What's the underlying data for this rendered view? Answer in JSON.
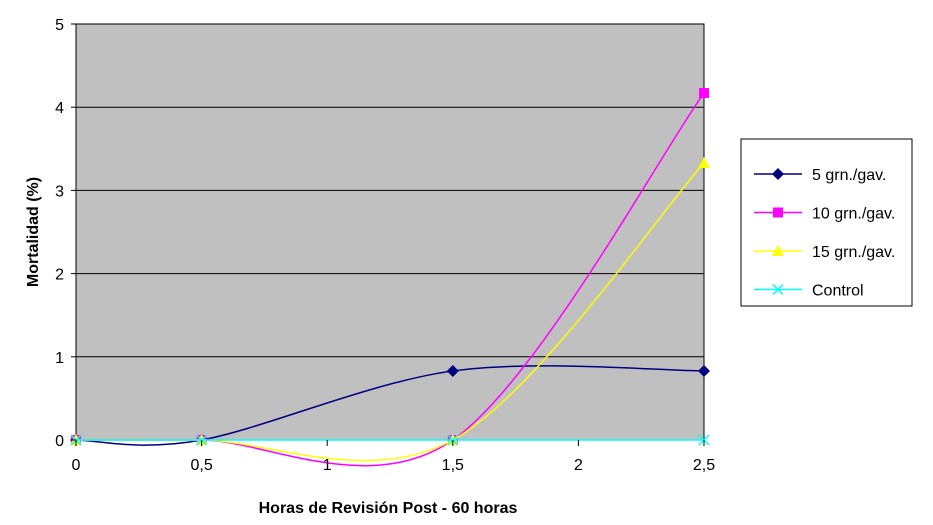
{
  "chart_data": {
    "type": "line",
    "title": "",
    "xlabel": "Horas de Revisión Post - 60 horas",
    "ylabel": "Mortalidad (%)",
    "xlim": [
      0,
      2.5
    ],
    "ylim": [
      0,
      5
    ],
    "x_ticks": [
      "0",
      "0,5",
      "1",
      "1,5",
      "2",
      "2,5"
    ],
    "y_ticks": [
      "0",
      "1",
      "2",
      "3",
      "4",
      "5"
    ],
    "grid": "horizontal",
    "legend_position": "right",
    "plot_background": "#c0c0c0",
    "x": [
      0,
      0.5,
      1.5,
      2.5
    ],
    "series": [
      {
        "name": "5 grn./gav.",
        "values": [
          0,
          0,
          0.83,
          0.83
        ],
        "color": "#000080",
        "marker": "diamond"
      },
      {
        "name": "10 grn./gav.",
        "values": [
          0,
          0,
          0,
          4.17
        ],
        "color": "#ff00ff",
        "marker": "square"
      },
      {
        "name": "15 grn./gav.",
        "values": [
          0,
          0,
          0,
          3.33
        ],
        "color": "#ffff00",
        "marker": "triangle"
      },
      {
        "name": "Control",
        "values": [
          0,
          0,
          0,
          0
        ],
        "color": "#00ffff",
        "marker": "x"
      }
    ]
  }
}
